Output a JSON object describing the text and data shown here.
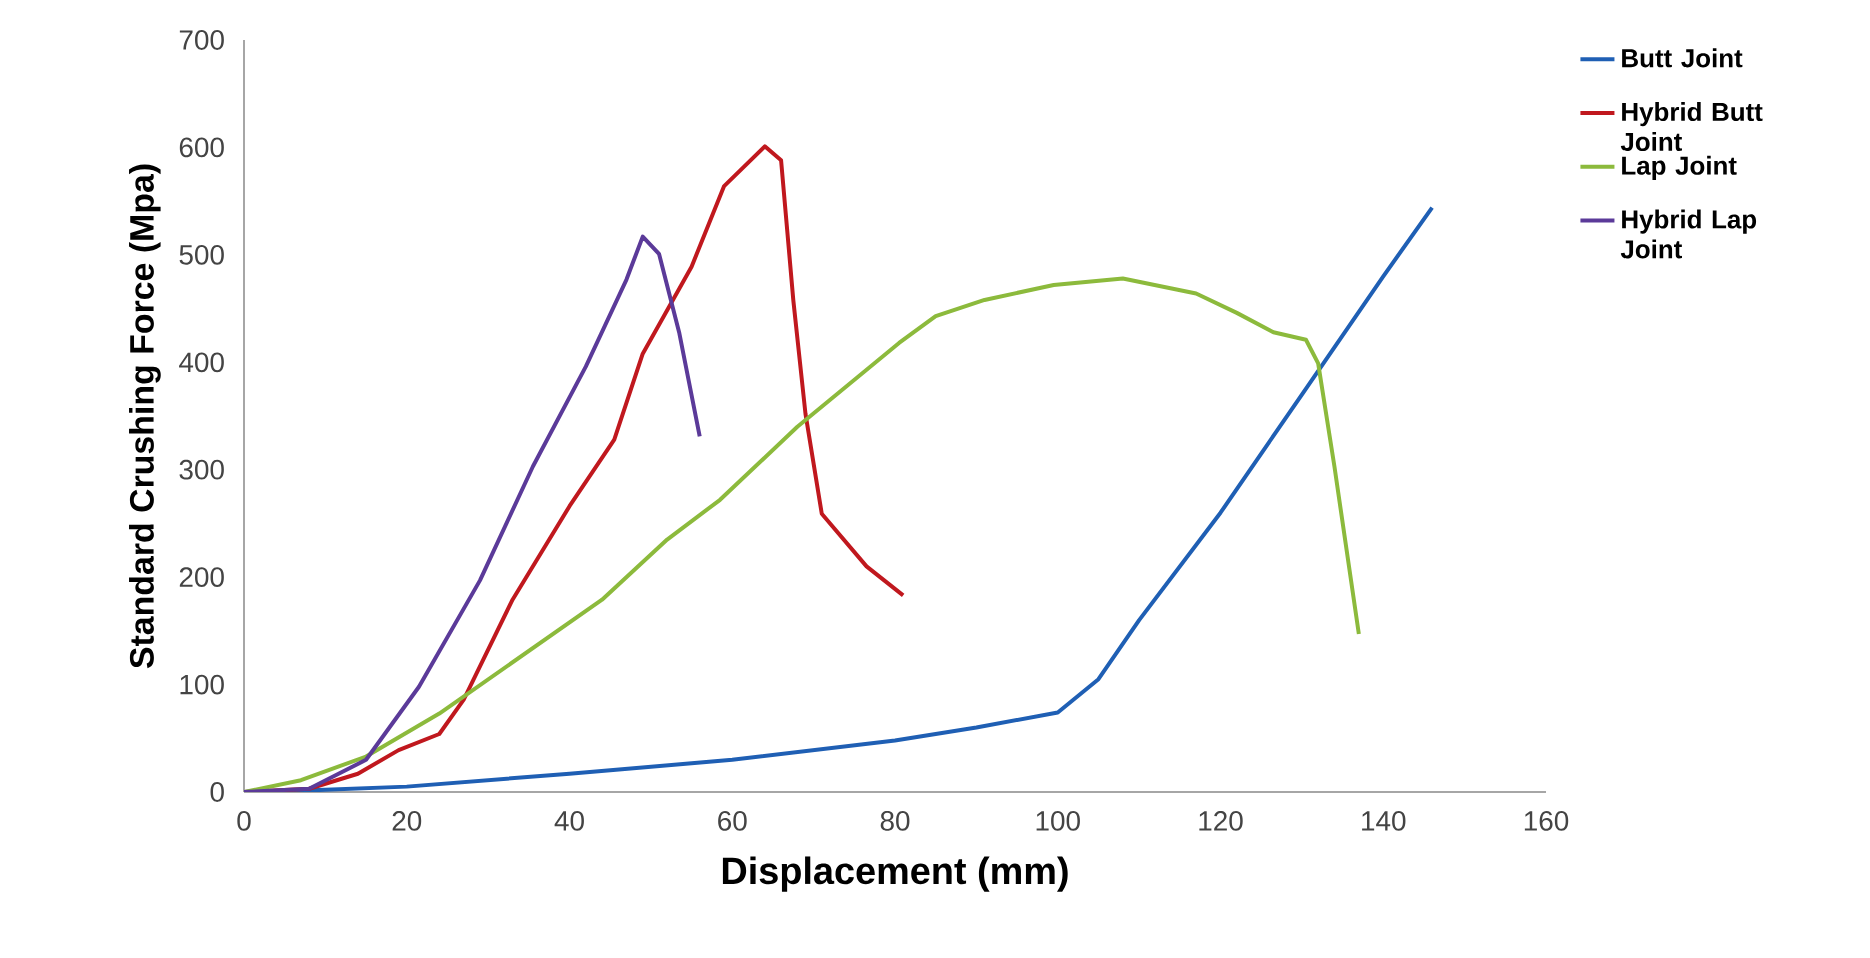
{
  "chart_data": {
    "type": "line",
    "xlabel": "Displacement (mm)",
    "ylabel": "Standard Crushing Force (Mpa)",
    "xlim": [
      0,
      160
    ],
    "ylim": [
      0,
      700
    ],
    "xticks": [
      0,
      20,
      40,
      60,
      80,
      100,
      120,
      140,
      160
    ],
    "yticks": [
      0,
      100,
      200,
      300,
      400,
      500,
      600,
      700
    ],
    "grid": false,
    "legend": "right",
    "marker": "none",
    "line_style": "solid",
    "series": [
      {
        "name": "Butt Joint",
        "color": "#1f5fb4",
        "x": [
          0,
          10,
          20,
          40,
          60,
          80,
          90,
          100,
          105,
          110,
          120,
          130,
          140,
          146
        ],
        "values": [
          0,
          2,
          5,
          17,
          30,
          48,
          60,
          74,
          105,
          160,
          260,
          370,
          480,
          544
        ]
      },
      {
        "name": "Hybrid Butt Joint",
        "color": "#c0181e",
        "x": [
          0,
          8,
          14,
          19,
          24,
          27,
          33,
          40,
          45.5,
          49,
          55,
          59,
          64,
          66,
          67.5,
          69,
          71,
          76.5,
          81
        ],
        "values": [
          0,
          3,
          17,
          39,
          54,
          86,
          179,
          266,
          328,
          408,
          489,
          564,
          601,
          588,
          458,
          352,
          259,
          210,
          183
        ]
      },
      {
        "name": "Lap Joint",
        "color": "#8cba3c",
        "x": [
          0,
          7,
          15,
          24,
          34,
          44,
          52,
          58.5,
          68,
          80.5,
          85,
          91,
          99.5,
          108,
          117,
          122,
          126.5,
          130.5,
          132,
          134,
          137
        ],
        "values": [
          0,
          11,
          33,
          73,
          126,
          179,
          235,
          272,
          340,
          418,
          443,
          458,
          472,
          478,
          464,
          446,
          428,
          421,
          399,
          303,
          147
        ]
      },
      {
        "name": "Hybrid Lap Joint",
        "color": "#5b3a99",
        "x": [
          0,
          8,
          15,
          21.5,
          29,
          35.5,
          42,
          47,
          49,
          51,
          53.5,
          56
        ],
        "values": [
          0,
          3,
          30,
          98,
          197,
          303,
          396,
          477,
          517,
          501,
          427,
          331
        ]
      }
    ]
  }
}
